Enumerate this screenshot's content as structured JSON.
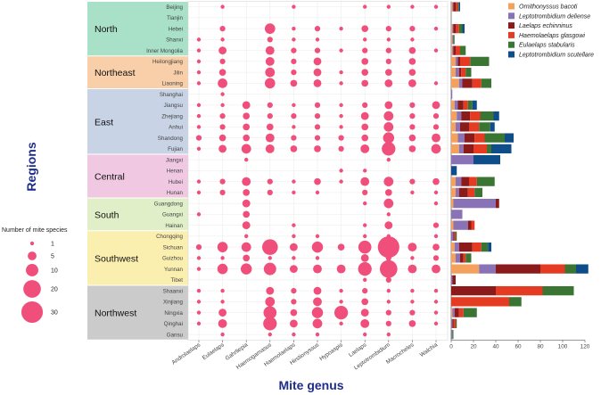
{
  "chart_data": [
    {
      "type": "bubble-matrix",
      "xlabel": "Mite genus",
      "ylabel": "Regions",
      "genera": [
        "Androlaelaps",
        "Eulaelaps",
        "Gahrliepia",
        "Haemogamasus",
        "Haemolaelaps",
        "Hirstionyssus",
        "Hypoaspis",
        "Laelaps",
        "Leptotrombidium",
        "Macrocheles",
        "Walchia"
      ],
      "regions": [
        {
          "name": "North",
          "color": "#a8e0c8",
          "provinces": [
            "Beijing",
            "Tianjin",
            "Hebei",
            "Shanxi",
            "Inner Mongolia"
          ]
        },
        {
          "name": "Northeast",
          "color": "#f8cfa8",
          "provinces": [
            "Heilongjiang",
            "Jilin",
            "Liaoning"
          ]
        },
        {
          "name": "East",
          "color": "#c8d3e6",
          "provinces": [
            "Shanghai",
            "Jiangsu",
            "Zhejiang",
            "Anhui",
            "Shandong",
            "Fujian"
          ]
        },
        {
          "name": "Central",
          "color": "#f0c8e2",
          "provinces": [
            "Jiangxi",
            "Henan",
            "Hubei",
            "Hunan"
          ]
        },
        {
          "name": "South",
          "color": "#e1efc8",
          "provinces": [
            "Guangdong",
            "Guangxi",
            "Hainan"
          ]
        },
        {
          "name": "Southwest",
          "color": "#fbefb0",
          "provinces": [
            "Chongqing",
            "Sichuan",
            "Guizhou",
            "Yunnan",
            "Tibet"
          ]
        },
        {
          "name": "Northwest",
          "color": "#cbcbcb",
          "provinces": [
            "Shaanxi",
            "Xinjiang",
            "Ningxia",
            "Qinghai",
            "Gansu"
          ]
        }
      ],
      "species_counts": [
        [
          0,
          1,
          0,
          0,
          1,
          0,
          0,
          1,
          1,
          1,
          1
        ],
        [
          0,
          0,
          0,
          0,
          0,
          0,
          0,
          0,
          0,
          0,
          0
        ],
        [
          0,
          2,
          0,
          7,
          1,
          2,
          1,
          3,
          2,
          2,
          1
        ],
        [
          1,
          1,
          0,
          2,
          1,
          1,
          0,
          1,
          1,
          1,
          0
        ],
        [
          1,
          4,
          0,
          5,
          2,
          2,
          1,
          2,
          2,
          3,
          1
        ],
        [
          1,
          2,
          0,
          5,
          2,
          4,
          0,
          3,
          2,
          3,
          0
        ],
        [
          1,
          3,
          0,
          6,
          2,
          4,
          1,
          3,
          3,
          3,
          0
        ],
        [
          1,
          6,
          0,
          7,
          3,
          4,
          1,
          3,
          4,
          4,
          1
        ],
        [
          0,
          1,
          0,
          0,
          0,
          0,
          0,
          0,
          0,
          0,
          0
        ],
        [
          1,
          1,
          4,
          2,
          1,
          2,
          1,
          2,
          4,
          2,
          4
        ],
        [
          1,
          2,
          3,
          2,
          2,
          2,
          1,
          4,
          6,
          2,
          2
        ],
        [
          1,
          2,
          3,
          3,
          1,
          2,
          1,
          3,
          6,
          2,
          2
        ],
        [
          2,
          3,
          3,
          5,
          2,
          2,
          2,
          3,
          8,
          3,
          5
        ],
        [
          1,
          4,
          6,
          5,
          3,
          3,
          2,
          5,
          12,
          3,
          6
        ],
        [
          0,
          0,
          1,
          0,
          0,
          0,
          0,
          0,
          1,
          0,
          0
        ],
        [
          0,
          0,
          0,
          0,
          0,
          0,
          1,
          1,
          0,
          0,
          0
        ],
        [
          1,
          2,
          5,
          2,
          1,
          3,
          1,
          5,
          6,
          2,
          3
        ],
        [
          1,
          2,
          3,
          2,
          1,
          1,
          0,
          2,
          3,
          1,
          1
        ],
        [
          0,
          0,
          4,
          0,
          0,
          0,
          0,
          1,
          6,
          0,
          1
        ],
        [
          1,
          0,
          3,
          0,
          0,
          0,
          0,
          0,
          1,
          0,
          0
        ],
        [
          0,
          0,
          4,
          0,
          1,
          0,
          0,
          1,
          4,
          0,
          2
        ],
        [
          0,
          0,
          1,
          0,
          1,
          1,
          0,
          1,
          1,
          0,
          1
        ],
        [
          2,
          7,
          6,
          16,
          4,
          8,
          3,
          11,
          30,
          5,
          3
        ],
        [
          1,
          1,
          3,
          1,
          1,
          1,
          0,
          4,
          2,
          1,
          2
        ],
        [
          1,
          7,
          8,
          10,
          4,
          5,
          5,
          12,
          20,
          5,
          5
        ],
        [
          0,
          0,
          0,
          0,
          0,
          0,
          0,
          1,
          2,
          0,
          0
        ],
        [
          1,
          1,
          0,
          4,
          2,
          4,
          1,
          2,
          1,
          1,
          1
        ],
        [
          1,
          1,
          0,
          6,
          2,
          5,
          1,
          3,
          1,
          1,
          1
        ],
        [
          1,
          4,
          0,
          11,
          3,
          8,
          12,
          4,
          2,
          2,
          1
        ],
        [
          1,
          5,
          0,
          12,
          4,
          6,
          1,
          5,
          2,
          3,
          1
        ],
        [
          0,
          1,
          0,
          1,
          1,
          1,
          0,
          1,
          1,
          0,
          0
        ]
      ],
      "size_legend": {
        "title": "Number of mite species",
        "values": [
          1,
          5,
          10,
          20,
          30
        ]
      }
    },
    {
      "type": "stacked-horizontal-bar",
      "x_ticks": [
        0,
        20,
        40,
        60,
        80,
        100,
        120
      ],
      "xlim": [
        0,
        120
      ],
      "series": [
        {
          "name": "Ornithonyssus bacoti",
          "color": "#f4a15d",
          "values": [
            1,
            0,
            1,
            1,
            1,
            4,
            4,
            7,
            0,
            3,
            5,
            4,
            6,
            7,
            0,
            0,
            4,
            4,
            2,
            0,
            2,
            0,
            3,
            4,
            25,
            0,
            0,
            0,
            1,
            0,
            0
          ]
        },
        {
          "name": "Leptotrombidium deliense",
          "color": "#8a72b6",
          "values": [
            1,
            0,
            1,
            1,
            1,
            2,
            3,
            3,
            1,
            3,
            4,
            4,
            6,
            4,
            20,
            0,
            5,
            3,
            38,
            10,
            13,
            2,
            4,
            4,
            15,
            1,
            0,
            0,
            2,
            1,
            1
          ]
        },
        {
          "name": "Laelaps echinninus",
          "color": "#8b1a1a",
          "values": [
            2,
            0,
            2,
            0,
            2,
            2,
            2,
            9,
            0,
            5,
            8,
            8,
            9,
            9,
            0,
            0,
            7,
            8,
            3,
            0,
            3,
            1,
            12,
            3,
            40,
            3,
            40,
            0,
            4,
            1,
            0
          ]
        },
        {
          "name": "Haemolaelaps glasgowi",
          "color": "#e53b22",
          "values": [
            2,
            0,
            3,
            0,
            4,
            9,
            4,
            8,
            0,
            4,
            9,
            9,
            9,
            12,
            0,
            0,
            7,
            6,
            0,
            0,
            3,
            1,
            8,
            2,
            22,
            0,
            42,
            52,
            4,
            2,
            0
          ]
        },
        {
          "name": "Eulaelaps stabularis",
          "color": "#3a7533",
          "values": [
            1,
            0,
            3,
            1,
            5,
            17,
            5,
            9,
            0,
            4,
            12,
            10,
            18,
            4,
            0,
            0,
            16,
            7,
            0,
            0,
            0,
            1,
            6,
            5,
            10,
            0,
            28,
            11,
            12,
            1,
            1
          ]
        },
        {
          "name": "Leptotrombidium scutellare",
          "color": "#0f4c8a",
          "values": [
            1,
            0,
            2,
            0,
            0,
            0,
            0,
            0,
            0,
            4,
            5,
            4,
            8,
            18,
            24,
            5,
            0,
            0,
            0,
            0,
            0,
            0,
            3,
            0,
            11,
            0,
            0,
            0,
            0,
            0,
            0
          ]
        }
      ]
    }
  ]
}
